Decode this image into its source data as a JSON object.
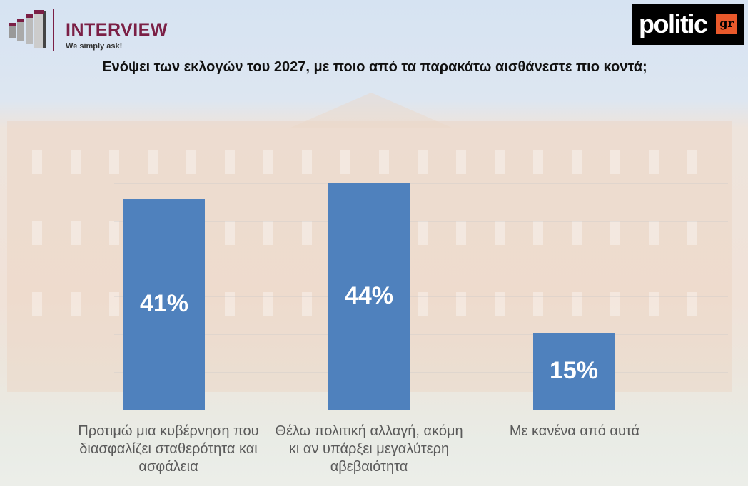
{
  "logos": {
    "interview": {
      "name": "INTERVIEW",
      "tagline": "We simply ask!"
    },
    "politic": {
      "name": "politic",
      "suffix": "gr"
    }
  },
  "chart_data": {
    "type": "bar",
    "title": "Ενόψει των εκλογών του 2027, με ποιο από τα παρακάτω αισθάνεστε πιο κοντά;",
    "categories": [
      "Προτιμώ μια κυβέρνηση που διασφαλίζει σταθερότητα και ασφάλεια",
      "Θέλω πολιτική αλλαγή, ακόμη κι αν υπάρξει μεγαλύτερη αβεβαιότητα",
      "Με κανένα από αυτά"
    ],
    "values": [
      41,
      44,
      15
    ],
    "labels": [
      "41%",
      "44%",
      "15%"
    ],
    "ylim": [
      0,
      50
    ],
    "xlabel": "",
    "ylabel": "",
    "bar_color": "#4f81bd"
  }
}
